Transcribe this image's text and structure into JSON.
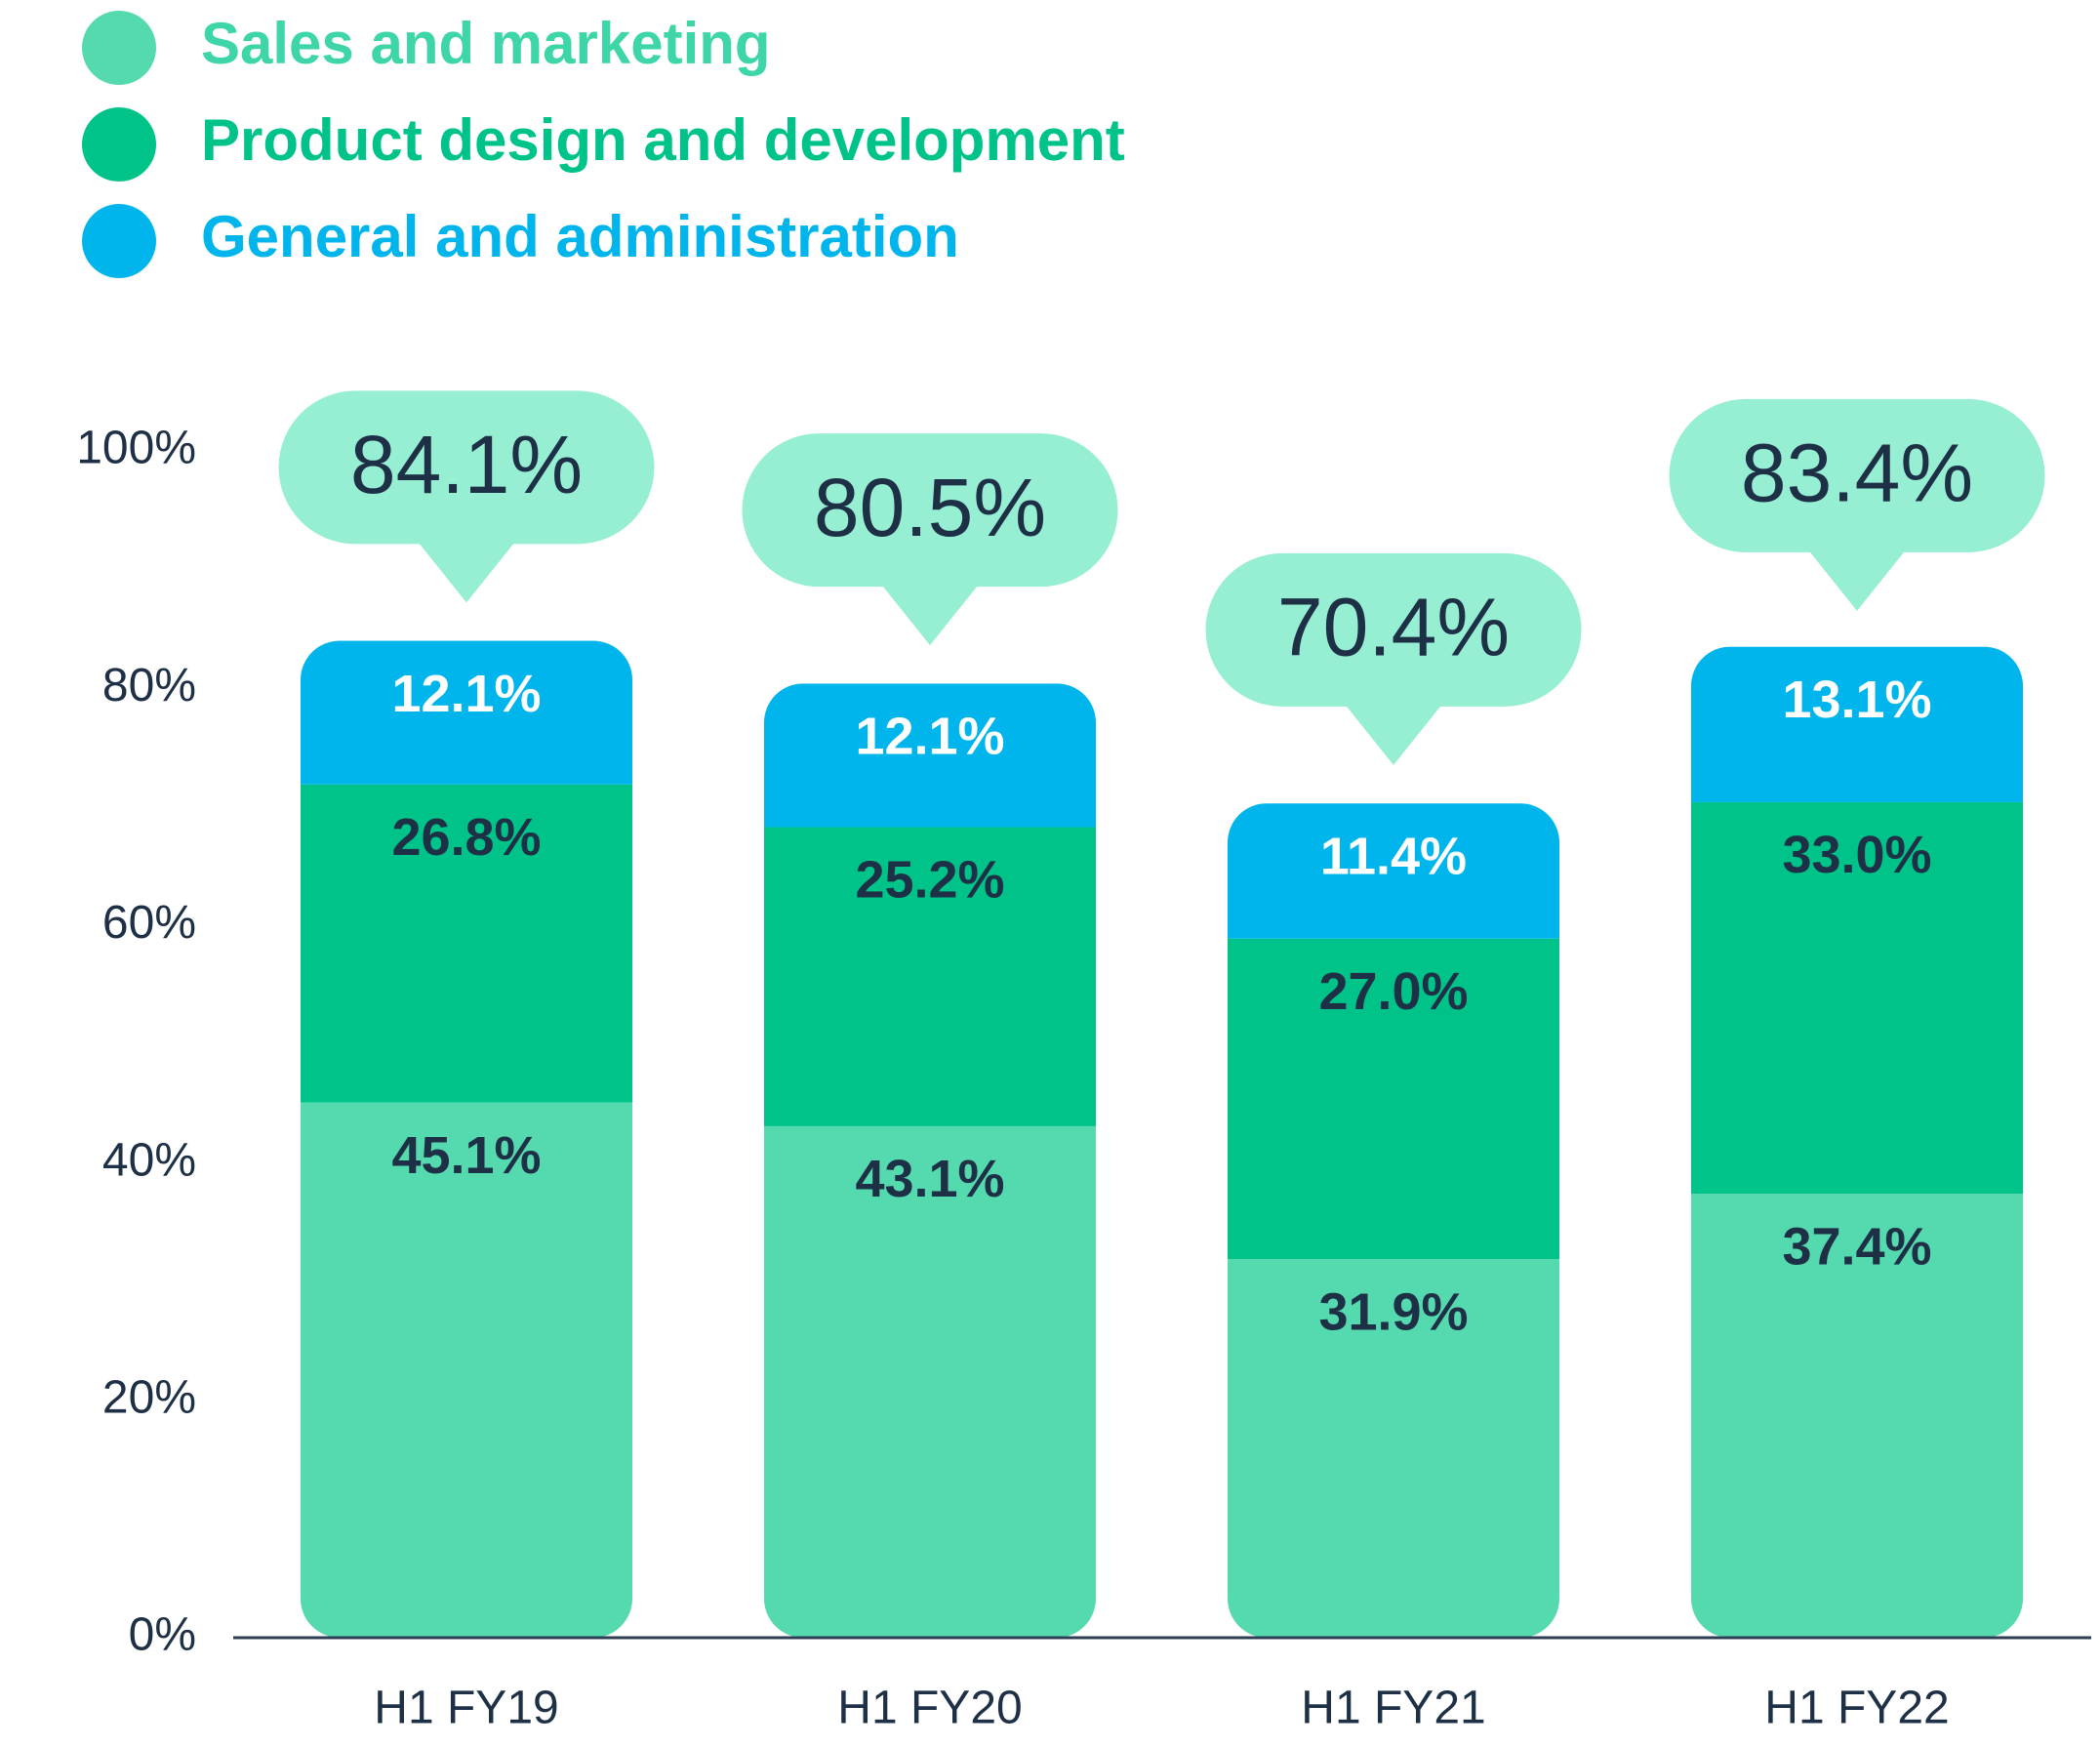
{
  "chart_data": {
    "type": "stacked_bar",
    "categories": [
      "H1 FY19",
      "H1 FY20",
      "H1 FY21",
      "H1 FY22"
    ],
    "series": [
      {
        "name": "Sales and marketing",
        "color": "#55d9ae",
        "values": [
          45.1,
          43.1,
          31.9,
          37.4
        ],
        "value_labels": [
          "45.1%",
          "43.1%",
          "31.9%",
          "37.4%"
        ]
      },
      {
        "name": "Product design and development",
        "color": "#00c389",
        "values": [
          26.8,
          25.2,
          27.0,
          33.0
        ],
        "value_labels": [
          "26.8%",
          "25.2%",
          "27.0%",
          "33.0%"
        ]
      },
      {
        "name": "General and administration",
        "color": "#00b5ec",
        "values": [
          12.1,
          12.1,
          11.4,
          13.1
        ],
        "value_labels": [
          "12.1%",
          "12.1%",
          "11.4%",
          "13.1%"
        ]
      }
    ],
    "totals": [
      84.1,
      80.5,
      70.4,
      83.4
    ],
    "total_labels": [
      "84.1%",
      "80.5%",
      "70.4%",
      "83.4%"
    ],
    "ylim": [
      0,
      100
    ],
    "yticks": [
      {
        "value": 0,
        "label": "0%"
      },
      {
        "value": 20,
        "label": "20%"
      },
      {
        "value": 40,
        "label": "40%"
      },
      {
        "value": 60,
        "label": "60%"
      },
      {
        "value": 80,
        "label": "80%"
      },
      {
        "value": 100,
        "label": "100%"
      }
    ],
    "legend": "top-left"
  }
}
